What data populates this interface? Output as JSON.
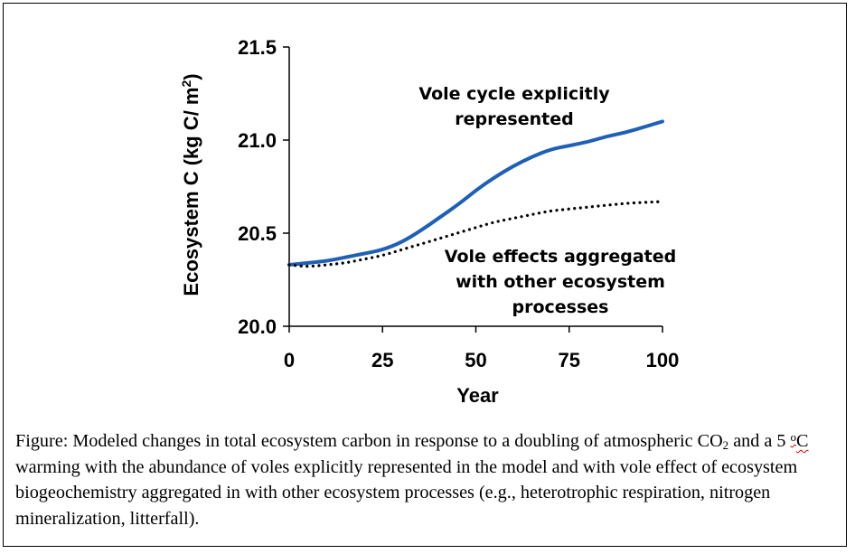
{
  "chart_data": {
    "type": "line",
    "xlabel": "Year",
    "ylabel": "Ecosystem C (kg C/ m",
    "ylabel_sup": "2",
    "ylabel_close": ")",
    "xlim": [
      0,
      100
    ],
    "ylim": [
      20.0,
      21.5
    ],
    "x_ticks": [
      "0",
      "25",
      "50",
      "75",
      "100"
    ],
    "y_ticks": [
      "21.5",
      "21.0",
      "20.5",
      "20.0"
    ],
    "grid": false,
    "annotations": [
      {
        "lines": [
          "Vole cycle explicitly",
          "represented"
        ]
      },
      {
        "lines": [
          "Vole effects aggregated",
          "with other ecosystem",
          "processes"
        ]
      }
    ],
    "series": [
      {
        "style": "solid",
        "color": "#1f5fb4",
        "x": [
          0,
          5,
          10,
          15,
          20,
          25,
          30,
          35,
          40,
          45,
          50,
          55,
          60,
          65,
          70,
          75,
          80,
          85,
          90,
          95,
          100
        ],
        "y": [
          20.33,
          20.34,
          20.35,
          20.37,
          20.39,
          20.41,
          20.45,
          20.51,
          20.58,
          20.65,
          20.73,
          20.8,
          20.86,
          20.91,
          20.95,
          20.97,
          20.99,
          21.02,
          21.04,
          21.07,
          21.1
        ]
      },
      {
        "style": "dotted",
        "color": "#000000",
        "x": [
          0,
          5,
          10,
          15,
          20,
          25,
          30,
          35,
          40,
          45,
          50,
          55,
          60,
          65,
          70,
          75,
          80,
          85,
          90,
          95,
          100
        ],
        "y": [
          20.33,
          20.32,
          20.33,
          20.34,
          20.36,
          20.38,
          20.41,
          20.44,
          20.47,
          20.5,
          20.53,
          20.56,
          20.58,
          20.6,
          20.62,
          20.63,
          20.64,
          20.65,
          20.66,
          20.665,
          20.67
        ]
      }
    ]
  },
  "caption": {
    "part1": "Figure: Modeled changes in total ecosystem carbon in response to a doubling of atmospheric CO",
    "sub": "2",
    "part2": " and a 5 ",
    "sup": "o",
    "unit": "C",
    "part3": " warming with the abundance of voles explicitly represented in the model and with vole effect of ecosystem biogeochemistry aggregated in with other ecosystem processes (e.g., heterotrophic respiration, nitrogen mineralization, litterfall)."
  }
}
